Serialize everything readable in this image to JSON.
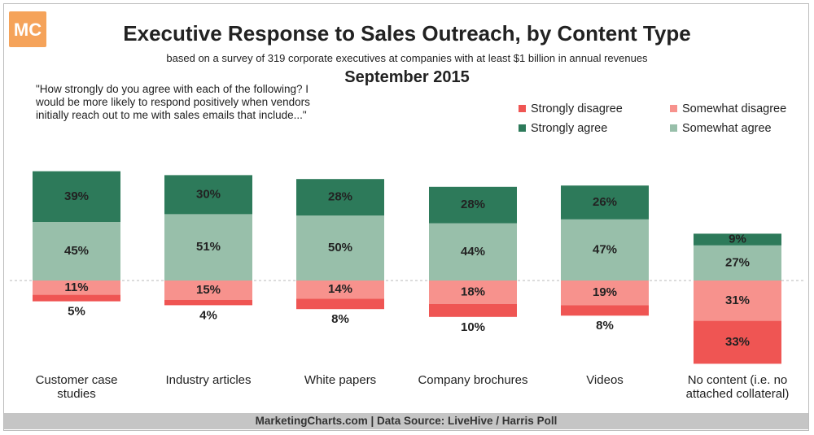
{
  "header": {
    "logo_text": "MC",
    "title": "Executive Response to Sales Outreach, by Content Type",
    "subtitle": "based on a survey of 319 corporate executives at companies with at least $1 billion in annual revenues",
    "date": "September 2015",
    "question": "\"How strongly do you agree with each of the following? I would be more likely to respond positively when vendors initially reach out to me with sales emails that include...\""
  },
  "legend": {
    "strongly_disagree": "Strongly disagree",
    "somewhat_disagree": "Somewhat disagree",
    "strongly_agree": "Strongly agree",
    "somewhat_agree": "Somewhat agree"
  },
  "colors": {
    "strongly_agree": "#2d7a5a",
    "somewhat_agree": "#98bfaa",
    "somewhat_disagree": "#f7928d",
    "strongly_disagree": "#ef5553"
  },
  "footer": "MarketingCharts.com | Data Source: LiveHive / Harris Poll",
  "chart_data": {
    "type": "bar",
    "stacked": "diverging",
    "categories": [
      "Customer case studies",
      "Industry articles",
      "White papers",
      "Company brochures",
      "Videos",
      "No content (i.e. no attached collateral)"
    ],
    "category_lines": [
      [
        "Customer case",
        "studies"
      ],
      [
        "Industry articles"
      ],
      [
        "White papers"
      ],
      [
        "Company brochures"
      ],
      [
        "Videos"
      ],
      [
        "No content (i.e. no",
        "attached collateral)"
      ]
    ],
    "series": [
      {
        "name": "Strongly agree",
        "values": [
          39,
          30,
          28,
          28,
          26,
          9
        ]
      },
      {
        "name": "Somewhat agree",
        "values": [
          45,
          51,
          50,
          44,
          47,
          27
        ]
      },
      {
        "name": "Somewhat disagree",
        "values": [
          11,
          15,
          14,
          18,
          19,
          31
        ]
      },
      {
        "name": "Strongly disagree",
        "values": [
          5,
          4,
          8,
          10,
          8,
          33
        ]
      }
    ],
    "unit": "%"
  }
}
